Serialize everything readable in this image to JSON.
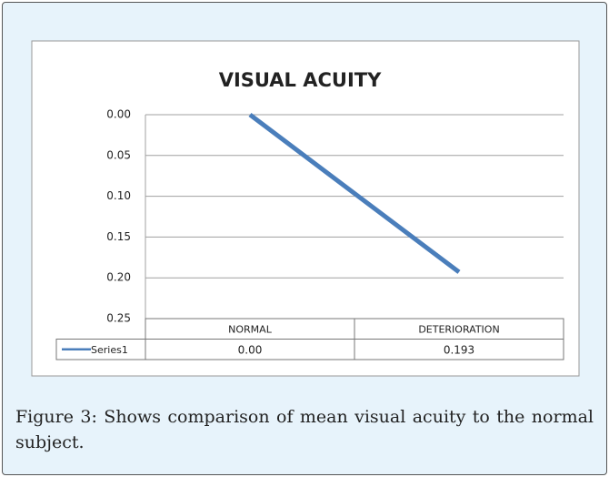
{
  "chart_data": {
    "type": "line",
    "title": "VISUAL ACUITY",
    "categories": [
      "NORMAL",
      "DETERIORATION"
    ],
    "series": [
      {
        "name": "Series1",
        "color": "#4a7ebb",
        "values": [
          0,
          0.193
        ],
        "value_labels": [
          "0.00",
          "0.193"
        ]
      }
    ],
    "ylim": [
      0,
      0.25
    ],
    "y_reversed": true,
    "yticks": [
      {
        "value": 0,
        "label": "0.00"
      },
      {
        "value": 0.05,
        "label": "0.05"
      },
      {
        "value": 0.1,
        "label": "0.10"
      },
      {
        "value": 0.15,
        "label": "0.15"
      },
      {
        "value": 0.2,
        "label": "0.20"
      },
      {
        "value": 0.25,
        "label": "0.25"
      }
    ],
    "grid": true,
    "data_table": true
  },
  "caption": "Figure 3: Shows comparison of mean visual acuity to the normal subject."
}
